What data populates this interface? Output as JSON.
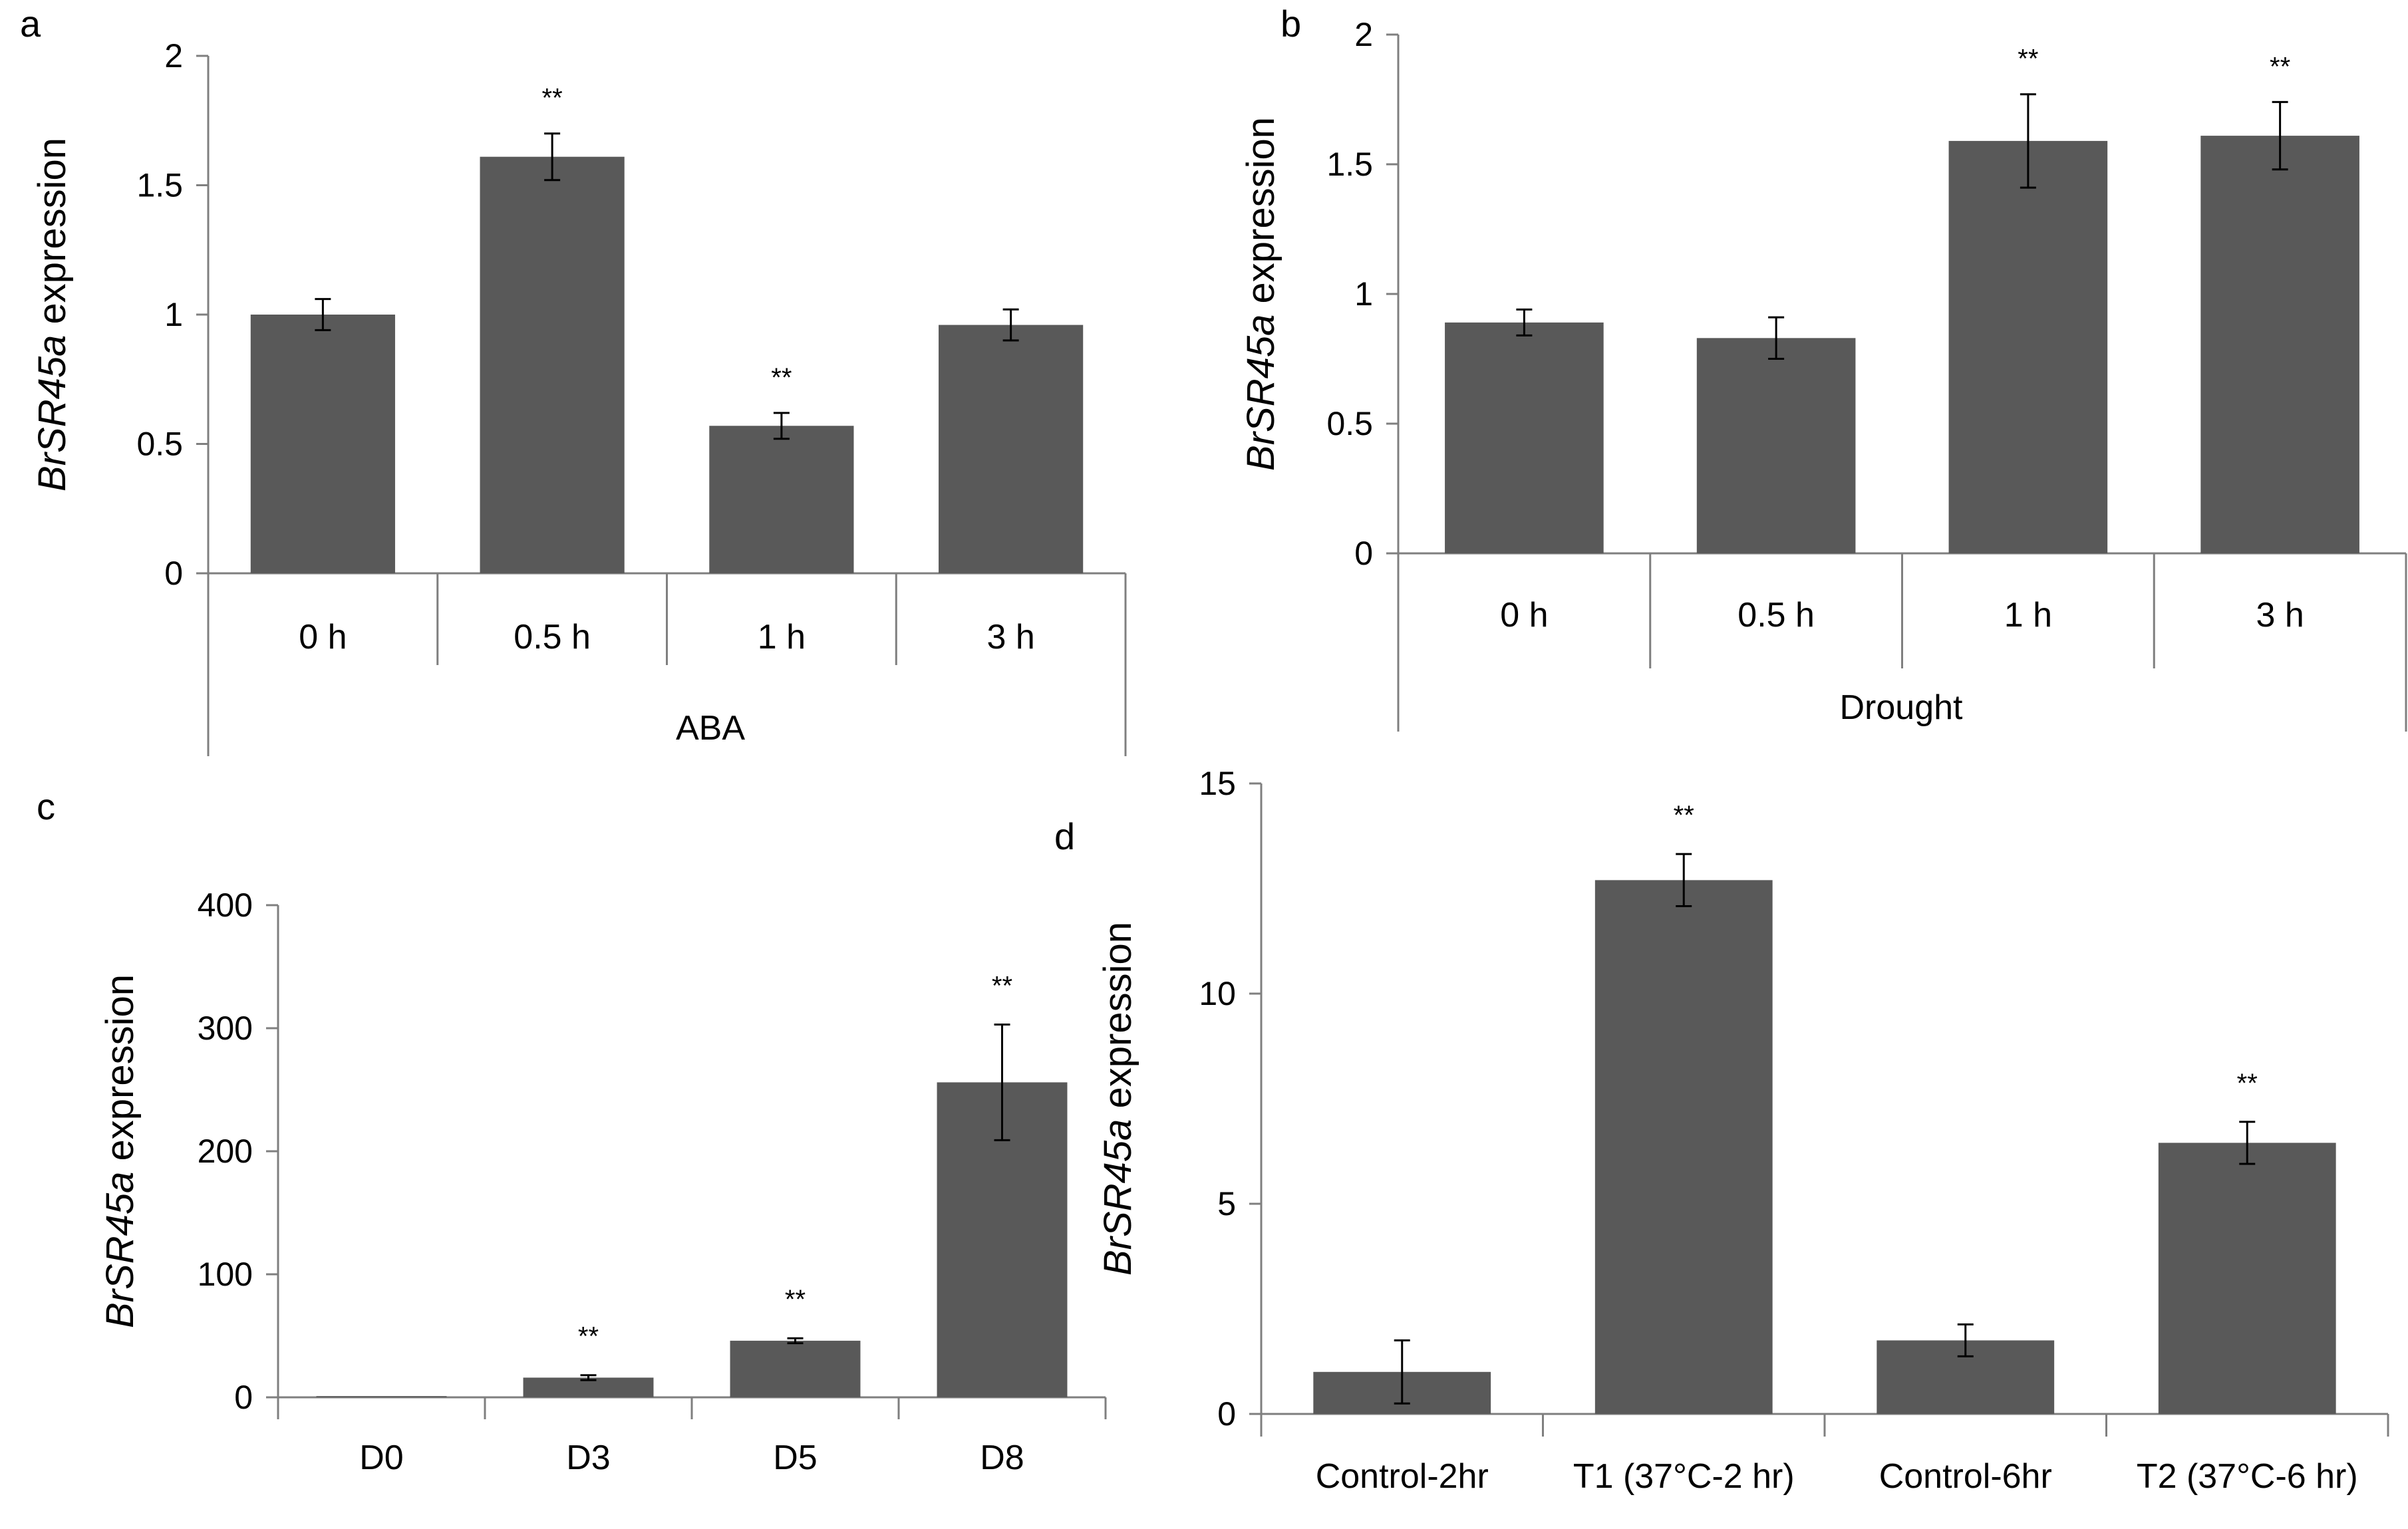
{
  "colors": {
    "bar": "#595959",
    "axis": "#7f7f7f",
    "error": "#000000",
    "text": "#000000"
  },
  "figure": {
    "panels": [
      "a",
      "b",
      "c",
      "d"
    ],
    "ylabel_gene": "BrSR45a",
    "ylabel_suffix": "expression"
  },
  "chart_data": [
    {
      "panel": "a",
      "type": "bar",
      "title": "",
      "xlabel": "ABA",
      "ylabel": "BrSR45a expression",
      "categories": [
        "0 h",
        "0.5 h",
        "1 h",
        "3 h"
      ],
      "values": [
        1.0,
        1.61,
        0.57,
        0.96
      ],
      "errors": [
        0.06,
        0.09,
        0.05,
        0.06
      ],
      "significance": [
        "",
        "**",
        "**",
        ""
      ],
      "ylim": [
        0,
        2
      ],
      "yticks": [
        0,
        0.5,
        1,
        1.5,
        2
      ],
      "ytick_labels": [
        "0",
        "0.5",
        "1",
        "1.5",
        "2"
      ],
      "grid": false
    },
    {
      "panel": "b",
      "type": "bar",
      "title": "",
      "xlabel": "Drought",
      "ylabel": "BrSR45a expression",
      "categories": [
        "0 h",
        "0.5 h",
        "1 h",
        "3 h"
      ],
      "values": [
        0.89,
        0.83,
        1.59,
        1.61
      ],
      "errors": [
        0.05,
        0.08,
        0.18,
        0.13
      ],
      "significance": [
        "",
        "",
        "**",
        "**"
      ],
      "ylim": [
        0,
        2
      ],
      "yticks": [
        0,
        0.5,
        1,
        1.5,
        2
      ],
      "ytick_labels": [
        "0",
        "0.5",
        "1",
        "1.5",
        "2"
      ],
      "grid": false
    },
    {
      "panel": "c",
      "type": "bar",
      "title": "",
      "xlabel": "",
      "ylabel": "BrSR45a expression",
      "categories": [
        "D0",
        "D3",
        "D5",
        "D8"
      ],
      "values": [
        1,
        16,
        46,
        256
      ],
      "errors": [
        0,
        2,
        2,
        47
      ],
      "significance": [
        "",
        "**",
        "**",
        "**"
      ],
      "ylim": [
        0,
        400
      ],
      "yticks": [
        0,
        100,
        200,
        300,
        400
      ],
      "ytick_labels": [
        "0",
        "100",
        "200",
        "300",
        "400"
      ],
      "grid": false
    },
    {
      "panel": "d",
      "type": "bar",
      "title": "",
      "xlabel": "",
      "ylabel": "BrSR45a expression",
      "categories": [
        "Control-2hr",
        "T1 (37°C-2 hr)",
        "Control-6hr",
        "T2 (37°C-6 hr)"
      ],
      "values": [
        1.0,
        12.7,
        1.75,
        6.45
      ],
      "errors": [
        0.75,
        0.62,
        0.38,
        0.5
      ],
      "significance": [
        "",
        "**",
        "",
        "**"
      ],
      "ylim": [
        0,
        15
      ],
      "yticks": [
        0,
        5,
        10,
        15
      ],
      "ytick_labels": [
        "0",
        "5",
        "10",
        "15"
      ],
      "grid": false
    }
  ]
}
